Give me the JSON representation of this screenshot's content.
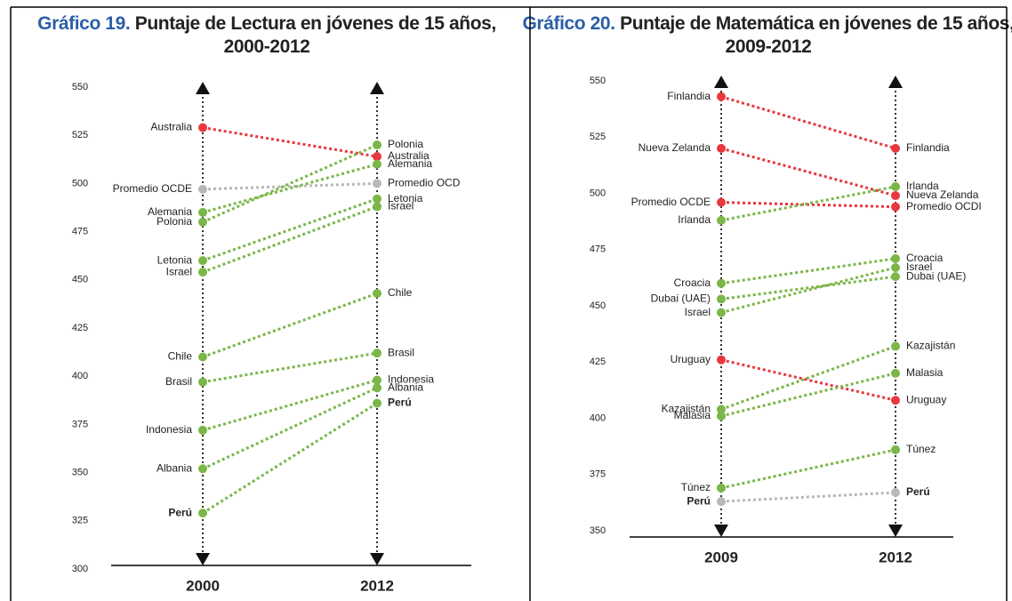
{
  "chart_data": [
    {
      "type": "slope",
      "label": "Gráfico 19.",
      "title": "Puntaje de Lectura en jóvenes de 15 años, 2000-2012",
      "categories": [
        "2000",
        "2012"
      ],
      "ylim": [
        300,
        550
      ],
      "yticks": [
        300,
        325,
        350,
        375,
        400,
        425,
        450,
        475,
        500,
        525,
        550
      ],
      "series": [
        {
          "name": "Australia",
          "color": "#e8383d",
          "values": [
            529,
            514
          ]
        },
        {
          "name": "Promedio OCDE",
          "end_name": "Promedio OCD",
          "color": "#b8b8b8",
          "values": [
            497,
            500
          ]
        },
        {
          "name": "Alemania",
          "color": "#7ab648",
          "values": [
            485,
            510
          ]
        },
        {
          "name": "Polonia",
          "color": "#7ab648",
          "values": [
            480,
            520
          ]
        },
        {
          "name": "Letonia",
          "color": "#7ab648",
          "values": [
            460,
            492
          ]
        },
        {
          "name": "Israel",
          "color": "#7ab648",
          "values": [
            454,
            488
          ]
        },
        {
          "name": "Chile",
          "color": "#7ab648",
          "values": [
            410,
            443
          ]
        },
        {
          "name": "Brasil",
          "color": "#7ab648",
          "values": [
            397,
            412
          ]
        },
        {
          "name": "Indonesia",
          "color": "#7ab648",
          "values": [
            372,
            398
          ]
        },
        {
          "name": "Albania",
          "color": "#7ab648",
          "values": [
            352,
            394
          ]
        },
        {
          "name": "Perú",
          "color": "#7ab648",
          "bold": true,
          "values": [
            329,
            386
          ]
        }
      ]
    },
    {
      "type": "slope",
      "label": "Gráfico 20.",
      "title": "Puntaje de Matemática en jóvenes de 15 años, 2009-2012",
      "categories": [
        "2009",
        "2012"
      ],
      "ylim": [
        350,
        550
      ],
      "yticks": [
        350,
        375,
        400,
        425,
        450,
        475,
        500,
        525,
        550
      ],
      "series": [
        {
          "name": "Finlandia",
          "color": "#e8383d",
          "values": [
            543,
            520
          ]
        },
        {
          "name": "Nueva Zelanda",
          "color": "#e8383d",
          "values": [
            520,
            499
          ]
        },
        {
          "name": "Promedio OCDE",
          "end_name": "Promedio OCDI",
          "color": "#e8383d",
          "values": [
            496,
            494
          ]
        },
        {
          "name": "Irlanda",
          "color": "#7ab648",
          "values": [
            488,
            503
          ]
        },
        {
          "name": "Croacia",
          "color": "#7ab648",
          "values": [
            460,
            471
          ]
        },
        {
          "name": "Dubai (UAE)",
          "color": "#7ab648",
          "values": [
            453,
            463
          ]
        },
        {
          "name": "Israel",
          "color": "#7ab648",
          "values": [
            447,
            467
          ]
        },
        {
          "name": "Uruguay",
          "color": "#e8383d",
          "values": [
            426,
            408
          ]
        },
        {
          "name": "Kazajistán",
          "color": "#7ab648",
          "values": [
            404,
            432
          ]
        },
        {
          "name": "Malasia",
          "color": "#7ab648",
          "values": [
            401,
            420
          ]
        },
        {
          "name": "Túnez",
          "color": "#7ab648",
          "values": [
            369,
            386
          ]
        },
        {
          "name": "Perú",
          "color": "#b8b8b8",
          "bold": true,
          "values": [
            363,
            367
          ]
        }
      ]
    }
  ]
}
